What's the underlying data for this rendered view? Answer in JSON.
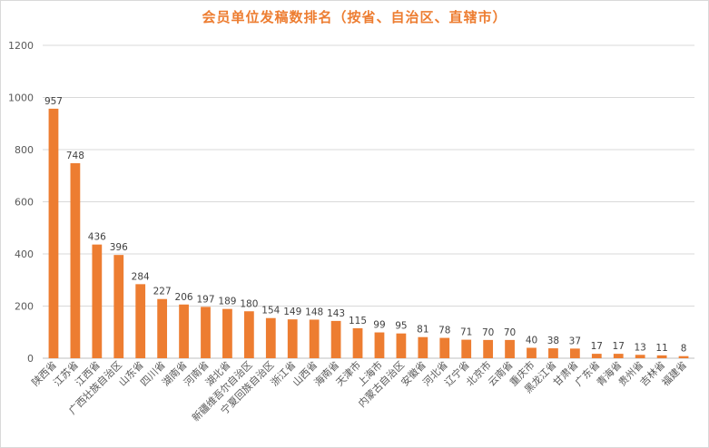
{
  "chart_data": {
    "type": "bar",
    "title": "会员单位发稿数排名（按省、自治区、直辖市）",
    "categories": [
      "陕西省",
      "江苏省",
      "江西省",
      "广西壮族自治区",
      "山东省",
      "四川省",
      "湖南省",
      "河南省",
      "湖北省",
      "新疆维吾尔自治区",
      "宁夏回族自治区",
      "浙江省",
      "山西省",
      "海南省",
      "天津市",
      "上海市",
      "内蒙古自治区",
      "安徽省",
      "河北省",
      "辽宁省",
      "北京市",
      "云南省",
      "重庆市",
      "黑龙江省",
      "甘肃省",
      "广东省",
      "青海省",
      "贵州省",
      "吉林省",
      "福建省"
    ],
    "values": [
      957,
      748,
      436,
      396,
      284,
      227,
      206,
      197,
      189,
      180,
      154,
      149,
      148,
      143,
      115,
      99,
      95,
      81,
      78,
      71,
      70,
      70,
      40,
      38,
      37,
      17,
      17,
      13,
      11,
      8
    ],
    "ylim": [
      0,
      1200
    ],
    "yticks": [
      0,
      200,
      400,
      600,
      800,
      1000,
      1200
    ],
    "bar_color": "#ed7d31",
    "grid": true,
    "legend": "none"
  }
}
